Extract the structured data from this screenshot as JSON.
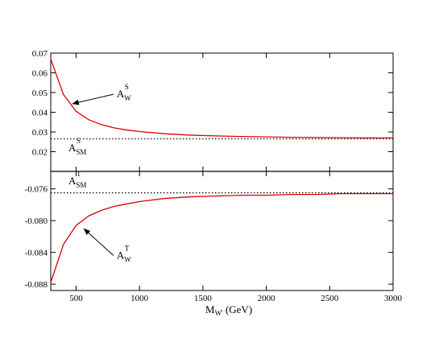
{
  "chart_data": [
    {
      "type": "line",
      "panel": "top",
      "ylim": [
        0.01,
        0.07
      ],
      "xlim": [
        300,
        3000
      ],
      "yticks": [
        "0.02",
        "0.03",
        "0.04",
        "0.05",
        "0.06",
        "0.07"
      ],
      "ytick_values": [
        0.02,
        0.03,
        0.04,
        0.05,
        0.06,
        0.07
      ],
      "series": [
        {
          "color": "#e00000",
          "style": "solid",
          "x": [
            300,
            400,
            500,
            600,
            700,
            800,
            900,
            1000,
            1200,
            1400,
            1600,
            1800,
            2000,
            2200,
            2400,
            2600,
            2800,
            3000
          ],
          "y": [
            0.067,
            0.049,
            0.0405,
            0.0362,
            0.0337,
            0.0321,
            0.031,
            0.0302,
            0.0291,
            0.0284,
            0.028,
            0.0277,
            0.0275,
            0.0273,
            0.0272,
            0.0271,
            0.027,
            0.027
          ]
        },
        {
          "color": "#000000",
          "style": "dotted",
          "x": [
            300,
            3000
          ],
          "y": [
            0.0265,
            0.0265
          ]
        }
      ],
      "annotations": [
        {
          "main": "A",
          "sup": "S",
          "sub": "W",
          "arrow": true,
          "text_at": [
            820,
            0.0475
          ],
          "arrow_to": [
            470,
            0.0443
          ]
        },
        {
          "main": "A",
          "sup": "S",
          "sub": "SM",
          "arrow": false,
          "text_at": [
            440,
            0.0203
          ]
        }
      ]
    },
    {
      "type": "line",
      "panel": "bottom",
      "ylim": [
        -0.0888,
        -0.0738
      ],
      "xlim": [
        300,
        3000
      ],
      "yticks": [
        "-0.088",
        "-0.084",
        "-0.080",
        "-0.076"
      ],
      "ytick_values": [
        -0.088,
        -0.084,
        -0.08,
        -0.076
      ],
      "xticks": [
        "500",
        "1000",
        "1500",
        "2000",
        "2500",
        "3000"
      ],
      "xtick_values": [
        500,
        1000,
        1500,
        2000,
        2500,
        3000
      ],
      "series": [
        {
          "color": "#e00000",
          "style": "solid",
          "x": [
            300,
            400,
            500,
            600,
            700,
            800,
            900,
            1000,
            1200,
            1400,
            1600,
            1800,
            2000,
            2200,
            2400,
            2600,
            2800,
            3000
          ],
          "y": [
            -0.0878,
            -0.083,
            -0.0806,
            -0.0794,
            -0.0787,
            -0.0782,
            -0.0779,
            -0.0776,
            -0.0772,
            -0.077,
            -0.0769,
            -0.0768,
            -0.0768,
            -0.0767,
            -0.0767,
            -0.0766,
            -0.0766,
            -0.0766
          ]
        },
        {
          "color": "#000000",
          "style": "dotted",
          "x": [
            300,
            3000
          ],
          "y": [
            -0.0765,
            -0.0765
          ]
        }
      ],
      "annotations": [
        {
          "main": "A",
          "sup": "T",
          "sub": "SM",
          "arrow": false,
          "text_at": [
            440,
            -0.0754
          ]
        },
        {
          "main": "A",
          "sup": "T",
          "sub": "W",
          "arrow": true,
          "text_at": [
            820,
            -0.0848
          ],
          "arrow_to": [
            560,
            -0.081
          ]
        }
      ]
    }
  ],
  "xlabel": {
    "main": "M",
    "sub": "W'",
    "unit": "(GeV)"
  }
}
